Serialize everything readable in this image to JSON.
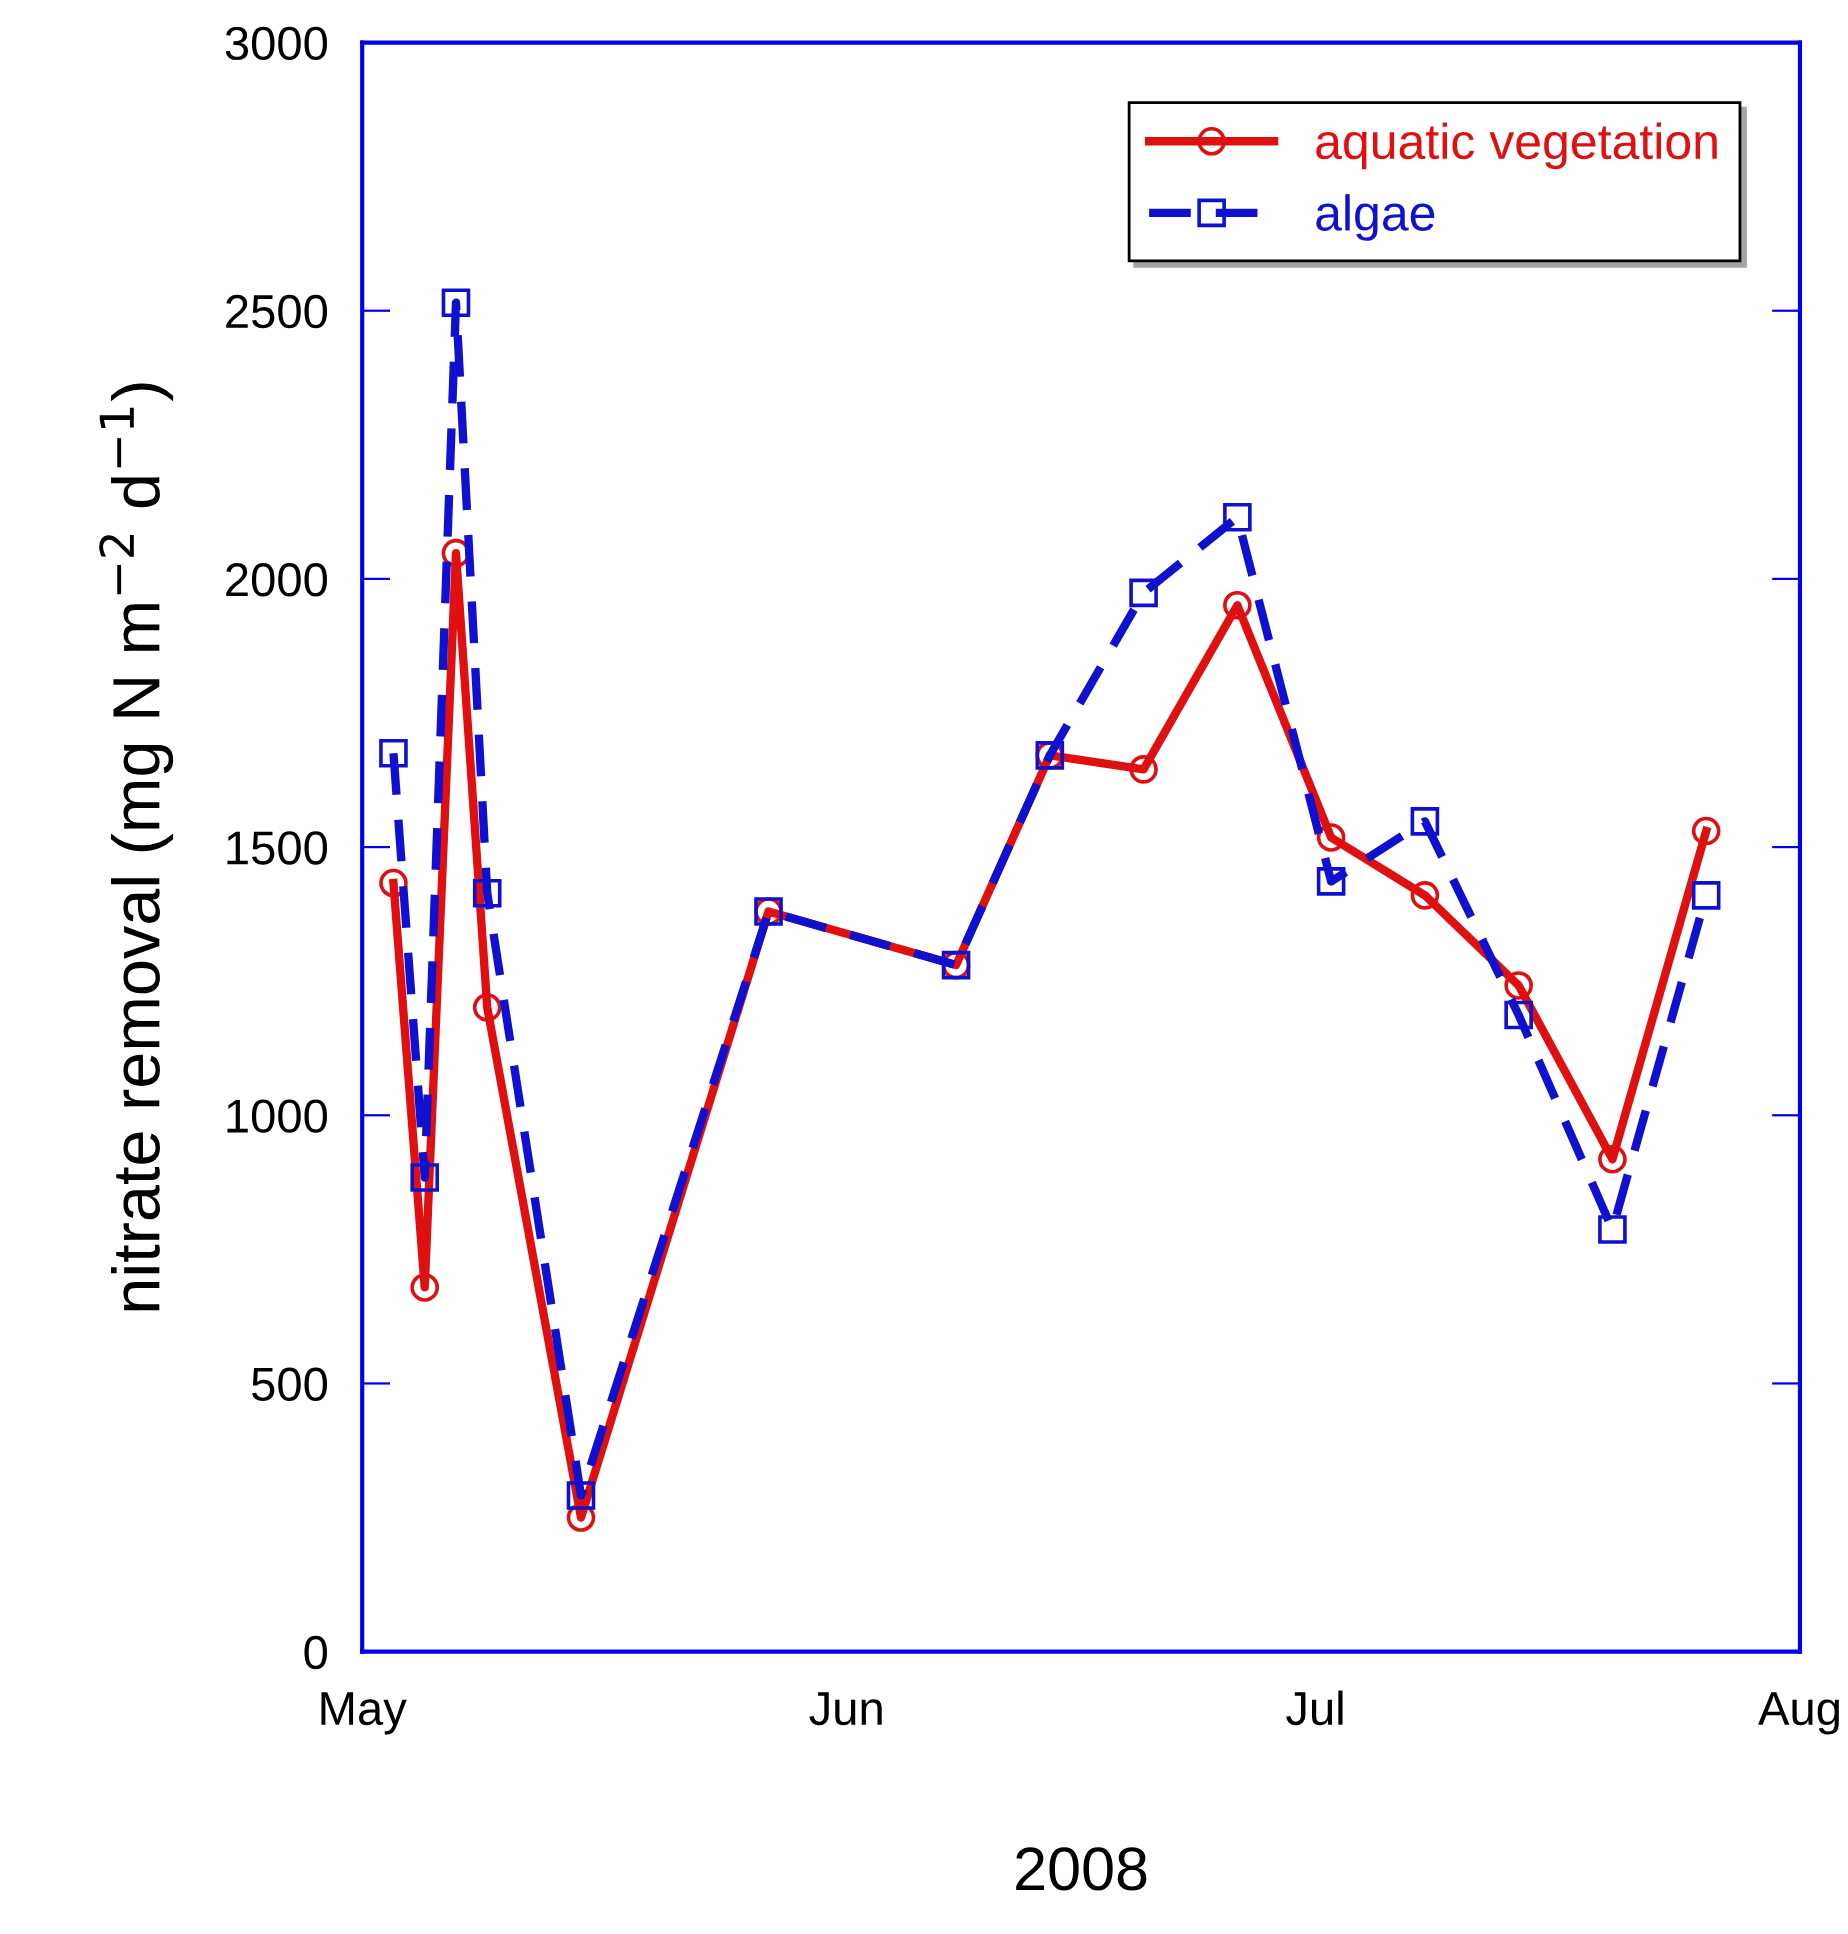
{
  "chart_data": {
    "type": "line",
    "xlabel": "2008",
    "ylabel": "nitrate removal (mg N m$^{−2}$ d$^{−1}$)",
    "x": [
      "2008-05-03",
      "2008-05-05",
      "2008-05-07",
      "2008-05-09",
      "2008-05-15",
      "2008-05-27",
      "2008-06-08",
      "2008-06-14",
      "2008-06-20",
      "2008-06-26",
      "2008-07-02",
      "2008-07-08",
      "2008-07-14",
      "2008-07-20",
      "2008-07-26"
    ],
    "series": [
      {
        "name": "aquatic vegetation",
        "color": "#e01010",
        "marker": "circle",
        "line_style": "solid",
        "values": [
          1433,
          679,
          2048,
          1201,
          250,
          1380,
          1280,
          1671,
          1645,
          1951,
          1518,
          1410,
          1242,
          918,
          1530
        ]
      },
      {
        "name": "algae",
        "color": "#1010d0",
        "marker": "square",
        "line_style": "dashed",
        "values": [
          1675,
          884,
          2515,
          1414,
          291,
          1380,
          1280,
          1671,
          1974,
          2115,
          1436,
          1548,
          1187,
          787,
          1410
        ]
      }
    ],
    "xlim": [
      "2008-05-01",
      "2008-08-01"
    ],
    "xticks": [
      {
        "value": "2008-05-01",
        "label": "May"
      },
      {
        "value": "2008-06-01",
        "label": "Jun"
      },
      {
        "value": "2008-07-01",
        "label": "Jul"
      },
      {
        "value": "2008-08-01",
        "label": "Aug"
      }
    ],
    "ylim": [
      0,
      3000
    ],
    "yticks": [
      0,
      500,
      1000,
      1500,
      2000,
      2500,
      3000
    ],
    "grid": false,
    "legend": "top right"
  }
}
